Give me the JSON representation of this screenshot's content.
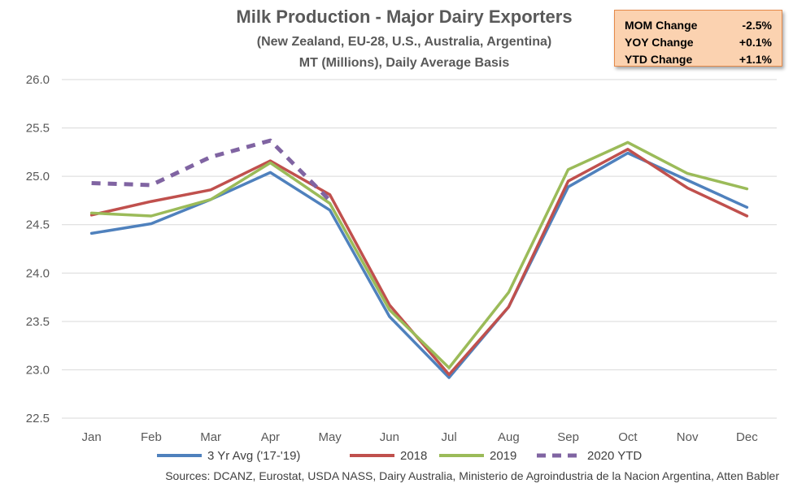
{
  "chart_data": {
    "type": "line",
    "title": "Milk Production - Major Dairy Exporters",
    "subtitle": "(New Zealand, EU-28, U.S., Australia, Argentina)",
    "subtitle2": "MT (Millions), Daily Average Basis",
    "categories": [
      "Jan",
      "Feb",
      "Mar",
      "Apr",
      "May",
      "Jun",
      "Jul",
      "Aug",
      "Sep",
      "Oct",
      "Nov",
      "Dec"
    ],
    "y_ticks": [
      "26.0",
      "25.5",
      "25.0",
      "24.5",
      "24.0",
      "23.5",
      "23.0",
      "22.5"
    ],
    "ylim": [
      22.5,
      26.0
    ],
    "grid": true,
    "legend_position": "bottom",
    "series": [
      {
        "name": "3 Yr Avg ('17-'19)",
        "color": "#4f81bd",
        "dashed": false,
        "values": [
          24.41,
          24.51,
          24.76,
          25.04,
          24.65,
          23.55,
          22.92,
          23.65,
          24.89,
          25.24,
          24.96,
          24.68
        ]
      },
      {
        "name": "2018",
        "color": "#c0504d",
        "dashed": false,
        "values": [
          24.6,
          24.74,
          24.86,
          25.16,
          24.81,
          23.67,
          22.95,
          23.65,
          24.95,
          25.28,
          24.88,
          24.59
        ]
      },
      {
        "name": "2019",
        "color": "#9bbb59",
        "dashed": false,
        "values": [
          24.62,
          24.59,
          24.76,
          25.14,
          24.72,
          23.62,
          23.02,
          23.8,
          25.07,
          25.35,
          25.03,
          24.87
        ]
      },
      {
        "name": "2020 YTD",
        "color": "#8064a2",
        "dashed": true,
        "values": [
          24.93,
          24.91,
          25.2,
          25.37,
          24.75,
          null,
          null,
          null,
          null,
          null,
          null,
          null
        ]
      }
    ],
    "source": "Sources: DCANZ, Eurostat, USDA NASS, Dairy Australia, Ministerio de Agroindustria de la Nacion Argentina, Atten Babler"
  },
  "stats": [
    {
      "label": "MOM Change",
      "value": "-2.5%"
    },
    {
      "label": "YOY Change",
      "value": "+0.1%"
    },
    {
      "label": "YTD Change",
      "value": "+1.1%"
    }
  ]
}
